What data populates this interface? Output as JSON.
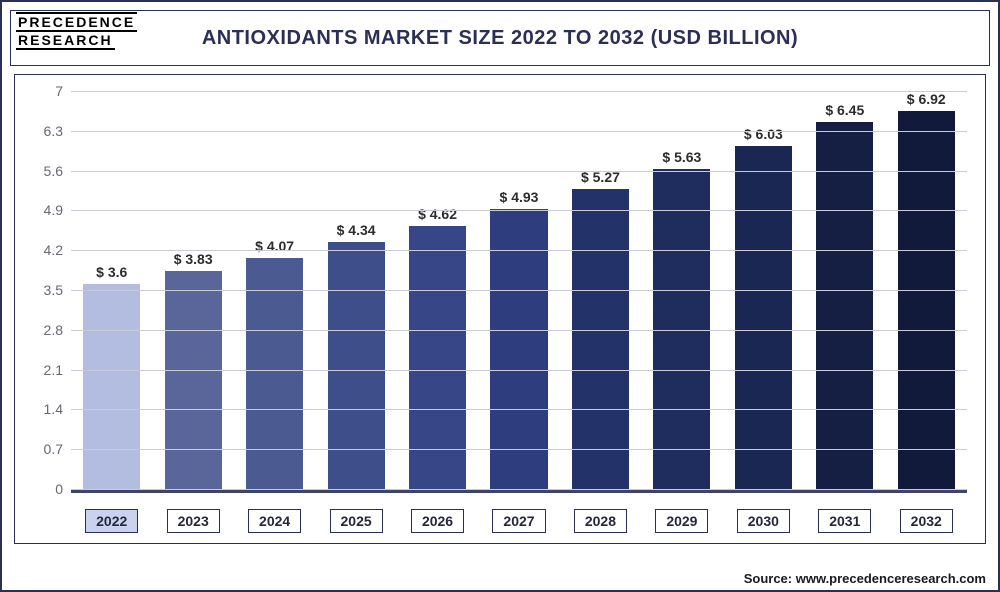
{
  "logo": {
    "line1": "PRECEDENCE",
    "line2": "RESEARCH"
  },
  "chart": {
    "type": "bar",
    "title": "ANTIOXIDANTS MARKET SIZE 2022 TO 2032 (USD BILLION)",
    "title_fontsize": 20,
    "title_color": "#2a2f55",
    "background_color": "#ffffff",
    "border_color": "#2a2f55",
    "grid_color": "#c9cbd6",
    "axis_label_color": "#666874",
    "value_label_color": "#2c2c2c",
    "label_fontsize": 14,
    "ylim": [
      0,
      7
    ],
    "ytick_step": 0.7,
    "yticks": [
      0,
      0.7,
      1.4,
      2.1,
      2.8,
      3.5,
      4.2,
      4.9,
      5.6,
      6.3,
      7
    ],
    "bar_width": 0.7,
    "highlight_index": 0,
    "categories": [
      "2022",
      "2023",
      "2024",
      "2025",
      "2026",
      "2027",
      "2028",
      "2029",
      "2030",
      "2031",
      "2032"
    ],
    "value_labels": [
      "$ 3.6",
      "$ 3.83",
      "$ 4.07",
      "$ 4.34",
      "$ 4.62",
      "$ 4.93",
      "$ 5.27",
      "$ 5.63",
      "$ 6.03",
      "$ 6.45",
      "$ 6.92"
    ],
    "values": [
      3.6,
      3.83,
      4.07,
      4.34,
      4.62,
      4.93,
      5.27,
      5.63,
      6.03,
      6.45,
      6.92
    ],
    "bar_colors": [
      "#b2bde0",
      "#5a6699",
      "#4b5a91",
      "#3e4e8a",
      "#364686",
      "#2d3d7d",
      "#233268",
      "#1f2d5e",
      "#1a2752",
      "#151f44",
      "#121a3c"
    ]
  },
  "source": "Source: www.precedenceresearch.com"
}
